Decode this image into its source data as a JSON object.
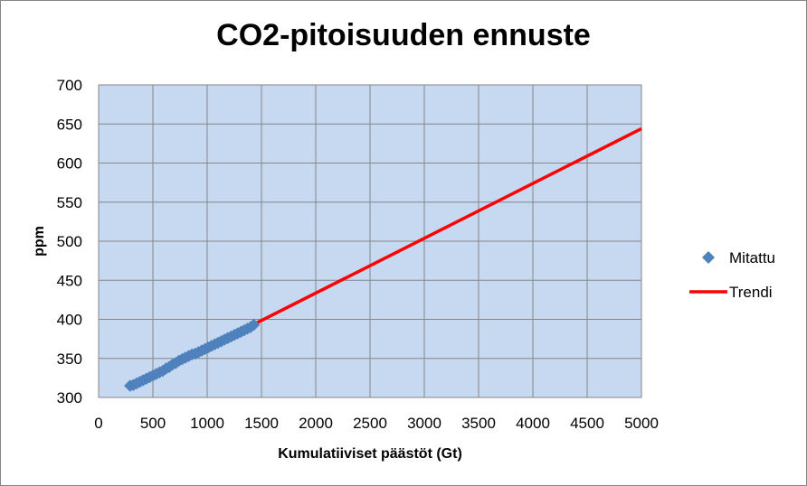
{
  "chart_data": {
    "type": "scatter",
    "title": "CO2-pitoisuuden ennuste",
    "xlabel": "Kumulatiiviset päästöt (Gt)",
    "ylabel": "ppm",
    "xlim": [
      0,
      5000
    ],
    "ylim": [
      300,
      700
    ],
    "xticks": [
      0,
      500,
      1000,
      1500,
      2000,
      2500,
      3000,
      3500,
      4000,
      4500,
      5000
    ],
    "yticks": [
      300,
      350,
      400,
      450,
      500,
      550,
      600,
      650,
      700
    ],
    "grid": true,
    "legend_position": "right",
    "plot_background": "#c6d9f1",
    "series": [
      {
        "name": "Mitattu",
        "kind": "scatter",
        "marker": "diamond",
        "color": "#4f81bd",
        "x": [
          290,
          320,
          350,
          380,
          410,
          440,
          470,
          500,
          530,
          560,
          590,
          620,
          650,
          680,
          710,
          740,
          770,
          800,
          830,
          860,
          890,
          920,
          950,
          980,
          1010,
          1040,
          1070,
          1100,
          1130,
          1160,
          1190,
          1220,
          1250,
          1280,
          1310,
          1340,
          1370,
          1400,
          1430
        ],
        "y": [
          315,
          316,
          318,
          320,
          322,
          324,
          326,
          328,
          330,
          332,
          334,
          337,
          339,
          342,
          344,
          347,
          349,
          351,
          353,
          355,
          356,
          358,
          360,
          362,
          364,
          366,
          368,
          370,
          372,
          374,
          376,
          378,
          380,
          382,
          384,
          386,
          388,
          390,
          393
        ]
      },
      {
        "name": "Trendi",
        "kind": "line",
        "color": "#ff0000",
        "x": [
          1450,
          5000
        ],
        "y": [
          395,
          644
        ]
      }
    ]
  }
}
